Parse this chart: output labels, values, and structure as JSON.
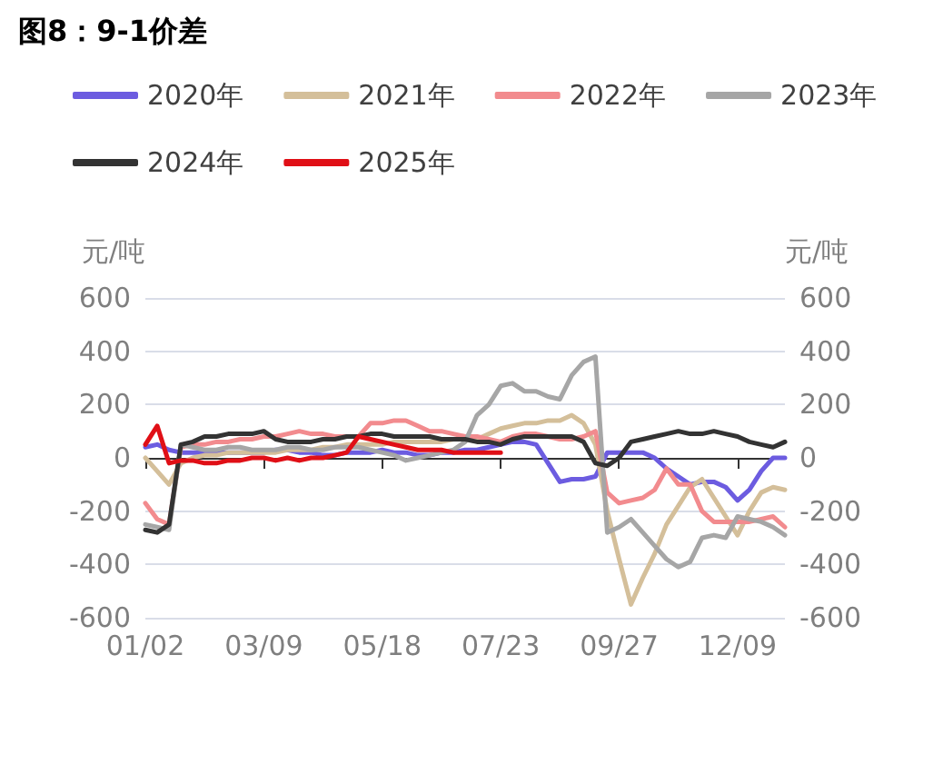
{
  "chart_data": {
    "type": "line",
    "title": "图8：9-1价差",
    "ylabel": "元/吨",
    "y2label": "元/吨",
    "categories": [
      "01/02",
      null,
      null,
      null,
      null,
      null,
      null,
      null,
      null,
      null,
      "03/09",
      null,
      null,
      null,
      null,
      null,
      null,
      null,
      null,
      null,
      "05/18",
      null,
      null,
      null,
      null,
      null,
      null,
      null,
      null,
      null,
      "07/23",
      null,
      null,
      null,
      null,
      null,
      null,
      null,
      null,
      null,
      "09/27",
      null,
      null,
      null,
      null,
      null,
      null,
      null,
      null,
      null,
      "12/09",
      null,
      null,
      null,
      null
    ],
    "series": [
      {
        "name": "2020年",
        "color": "#6c5ce0",
        "values": [
          40,
          50,
          30,
          20,
          20,
          20,
          20,
          20,
          20,
          20,
          20,
          30,
          30,
          20,
          20,
          10,
          10,
          20,
          20,
          20,
          30,
          20,
          20,
          10,
          10,
          20,
          20,
          30,
          30,
          40,
          50,
          60,
          60,
          50,
          -20,
          -90,
          -80,
          -80,
          -70,
          20,
          20,
          20,
          20,
          0,
          -40,
          -70,
          -100,
          -90,
          -90,
          -110,
          -160,
          -120,
          -50,
          0,
          0
        ]
      },
      {
        "name": "2021年",
        "color": "#d4bf9a",
        "values": [
          0,
          -50,
          -100,
          -20,
          0,
          10,
          10,
          20,
          20,
          20,
          20,
          20,
          30,
          30,
          30,
          40,
          40,
          50,
          50,
          50,
          50,
          60,
          60,
          60,
          60,
          60,
          70,
          70,
          70,
          90,
          110,
          120,
          130,
          130,
          140,
          140,
          160,
          130,
          50,
          -200,
          -380,
          -550,
          -450,
          -360,
          -250,
          -180,
          -110,
          -80,
          -150,
          -220,
          -290,
          -200,
          -130,
          -110,
          -120
        ]
      },
      {
        "name": "2022年",
        "color": "#f28b8e",
        "values": [
          -170,
          -230,
          -250,
          40,
          50,
          50,
          60,
          60,
          70,
          70,
          80,
          80,
          90,
          100,
          90,
          90,
          80,
          80,
          80,
          130,
          130,
          140,
          140,
          120,
          100,
          100,
          90,
          80,
          80,
          70,
          60,
          80,
          90,
          90,
          80,
          70,
          70,
          80,
          100,
          -130,
          -170,
          -160,
          -150,
          -120,
          -40,
          -100,
          -100,
          -200,
          -240,
          -240,
          -240,
          -240,
          -230,
          -220,
          -260
        ]
      },
      {
        "name": "2023年",
        "color": "#a6a6a6",
        "values": [
          -250,
          -260,
          -270,
          50,
          40,
          30,
          30,
          40,
          40,
          30,
          30,
          30,
          40,
          40,
          30,
          30,
          40,
          40,
          40,
          30,
          20,
          10,
          -10,
          0,
          10,
          20,
          30,
          60,
          160,
          200,
          270,
          280,
          250,
          250,
          230,
          220,
          310,
          360,
          380,
          -280,
          -260,
          -230,
          -280,
          -330,
          -380,
          -410,
          -390,
          -300,
          -290,
          -300,
          -220,
          -230,
          -240,
          -260,
          -290
        ]
      },
      {
        "name": "2024年",
        "color": "#333333",
        "values": [
          -270,
          -280,
          -250,
          50,
          60,
          80,
          80,
          90,
          90,
          90,
          100,
          70,
          60,
          60,
          60,
          70,
          70,
          80,
          80,
          90,
          90,
          80,
          80,
          80,
          80,
          70,
          70,
          70,
          60,
          60,
          50,
          70,
          80,
          80,
          80,
          80,
          80,
          60,
          -20,
          -30,
          0,
          60,
          70,
          80,
          90,
          100,
          90,
          90,
          100,
          90,
          80,
          60,
          50,
          40,
          60
        ]
      },
      {
        "name": "2025年",
        "color": "#e00f16",
        "values": [
          50,
          120,
          -20,
          -10,
          -10,
          -20,
          -20,
          -10,
          -10,
          0,
          0,
          -10,
          0,
          -10,
          0,
          0,
          10,
          20,
          80,
          70,
          60,
          50,
          40,
          30,
          30,
          30,
          20,
          20,
          20,
          20,
          20,
          null,
          null,
          null,
          null,
          null,
          null,
          null,
          null,
          null,
          null,
          null,
          null,
          null,
          null,
          null,
          null,
          null,
          null,
          null,
          null,
          null,
          null,
          null,
          null
        ]
      }
    ],
    "ylim": [
      -600,
      600
    ],
    "yticks": [
      -600,
      -400,
      -200,
      0,
      200,
      400,
      600
    ],
    "y2lim": [
      -600,
      600
    ],
    "y2ticks": [
      -600,
      -400,
      -200,
      0,
      200,
      400,
      600
    ],
    "grid": "y",
    "legend": "top",
    "marker": "none",
    "line_style": "solid"
  }
}
